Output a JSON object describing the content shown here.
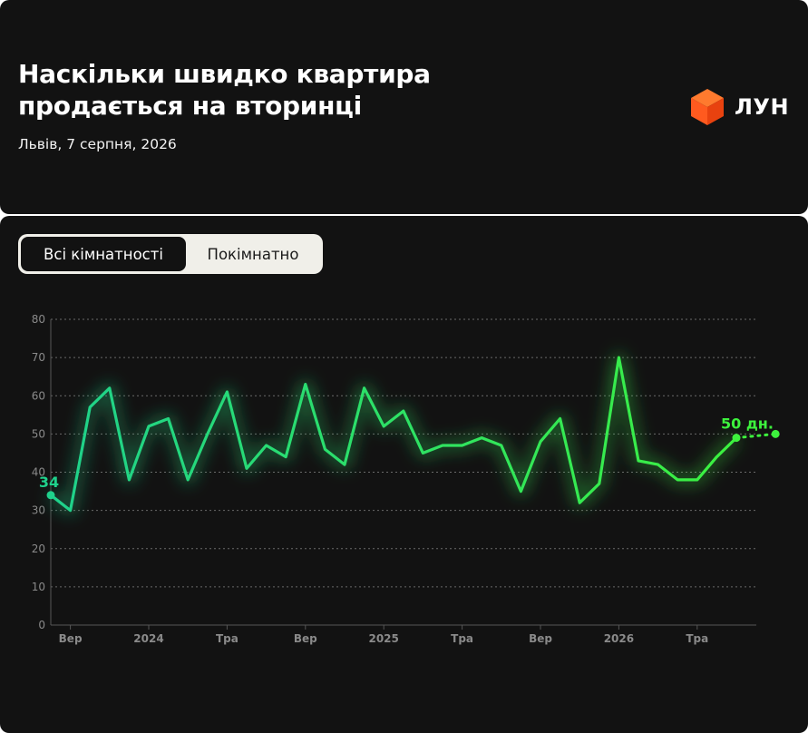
{
  "header": {
    "title": "Наскільки швидко квартира продається на вторинці",
    "subtitle": "Львів, 7 серпня, 2026",
    "brand": "ЛУН"
  },
  "tabs": [
    {
      "label": "Всі кімнатності",
      "active": true
    },
    {
      "label": "Покімнатно",
      "active": false
    }
  ],
  "colors": {
    "background": "#121212",
    "line_start": "#1fd18c",
    "line_end": "#3df23d",
    "grid": "#6a6a6a",
    "axis_text": "#8a8a8a",
    "logo_orange": "#ff5a1f"
  },
  "chart_data": {
    "type": "line",
    "title": "",
    "xlabel": "",
    "ylabel": "",
    "ylim": [
      0,
      80
    ],
    "yticks": [
      0,
      10,
      20,
      30,
      40,
      50,
      60,
      70,
      80
    ],
    "grid": "horizontal dashed",
    "x_tick_labels": [
      "Вер",
      "2024",
      "Тра",
      "Вер",
      "2025",
      "Тра",
      "Вер",
      "2026",
      "Тра"
    ],
    "x_tick_indices": [
      1,
      5,
      9,
      13,
      17,
      21,
      25,
      29,
      33
    ],
    "series": [
      {
        "values": [
          34,
          30,
          57,
          62,
          38,
          52,
          54,
          38,
          50,
          61,
          41,
          47,
          44,
          63,
          46,
          42,
          62,
          52,
          56,
          45,
          47,
          47,
          49,
          47,
          35,
          48,
          54,
          32,
          37,
          70,
          43,
          42,
          38,
          38,
          44,
          49
        ]
      }
    ],
    "forecast_point": {
      "index": 37,
      "value": 50
    },
    "start_label": "34",
    "end_label": "50 дн."
  }
}
